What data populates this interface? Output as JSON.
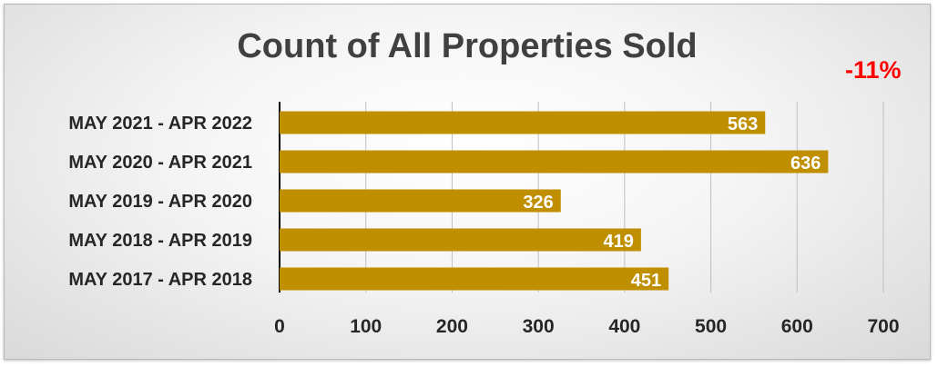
{
  "chart_data": {
    "type": "bar",
    "orientation": "horizontal",
    "title": "Count of All Properties Sold",
    "annotation": "-11%",
    "categories": [
      "MAY 2021 - APR 2022",
      "MAY 2020 - APR 2021",
      "MAY 2019 - APR 2020",
      "MAY 2018 - APR 2019",
      "MAY 2017 - APR 2018"
    ],
    "values": [
      563,
      636,
      326,
      419,
      451
    ],
    "xlim": [
      0,
      700
    ],
    "xticks": [
      0,
      100,
      200,
      300,
      400,
      500,
      600,
      700
    ],
    "grid": "vertical",
    "bar_color": "#bf8f00",
    "label_color": "#ffffff",
    "annotation_color": "#ff0000"
  }
}
